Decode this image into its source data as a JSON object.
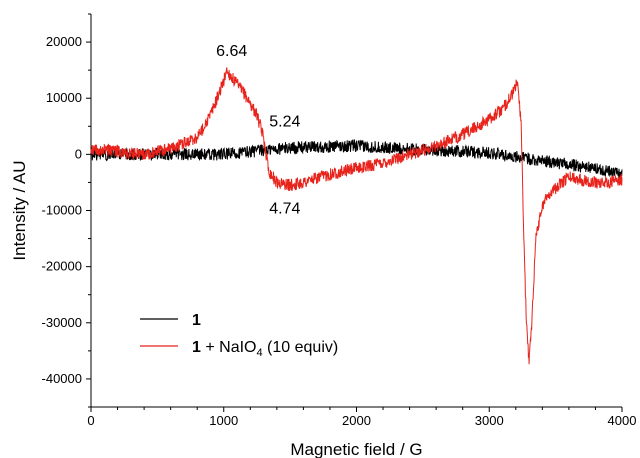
{
  "chart_data": {
    "type": "line",
    "xlabel": "Magnetic field / G",
    "ylabel": "Intensity / AU",
    "xlim": [
      0,
      4000
    ],
    "ylim": [
      -45000,
      25000
    ],
    "x_ticks": [
      0,
      1000,
      2000,
      3000,
      4000
    ],
    "y_ticks": [
      20000,
      10000,
      0,
      -10000,
      -20000,
      -30000,
      -40000
    ],
    "grid": false,
    "legend": {
      "placement": "bottom-left",
      "entries": [
        {
          "bold": "1",
          "text": "",
          "color": "#000000"
        },
        {
          "bold": "1",
          "text": " + NaIO",
          "sub": "4",
          "text_after": " (10 equiv)",
          "color": "#e8231b"
        }
      ]
    },
    "annotations": [
      {
        "text": "6.64",
        "x": 1060,
        "y": 17500
      },
      {
        "text": "5.24",
        "x": 1460,
        "y": 5000
      },
      {
        "text": "4.74",
        "x": 1460,
        "y": -10500
      }
    ],
    "series": [
      {
        "color": "#000000",
        "noise": 1100,
        "x": [
          0,
          500,
          1000,
          1500,
          2000,
          2500,
          3000,
          3500,
          3800,
          4000
        ],
        "y": [
          0,
          0,
          0,
          1200,
          1500,
          800,
          300,
          -1500,
          -2500,
          -3500
        ]
      },
      {
        "color": "#e8231b",
        "noise": 1100,
        "x": [
          0,
          200,
          400,
          600,
          800,
          900,
          950,
          1000,
          1020,
          1050,
          1100,
          1150,
          1200,
          1250,
          1300,
          1340,
          1400,
          1500,
          1600,
          1800,
          2000,
          2200,
          2400,
          2600,
          2800,
          2950,
          3100,
          3180,
          3210,
          3240,
          3260,
          3280,
          3300,
          3320,
          3350,
          3400,
          3450,
          3500,
          3600,
          3700,
          3800,
          3900,
          4000
        ],
        "y": [
          1000,
          500,
          0,
          1000,
          3000,
          7000,
          10000,
          13000,
          15000,
          14000,
          12500,
          11000,
          9000,
          7000,
          3000,
          -3000,
          -5000,
          -5500,
          -5000,
          -3500,
          -2500,
          -1500,
          0,
          1500,
          3500,
          5500,
          8000,
          11000,
          13000,
          6000,
          -15000,
          -30000,
          -37000,
          -30000,
          -15000,
          -9000,
          -7000,
          -6000,
          -4000,
          -4500,
          -5000,
          -5000,
          -4500
        ]
      }
    ]
  }
}
